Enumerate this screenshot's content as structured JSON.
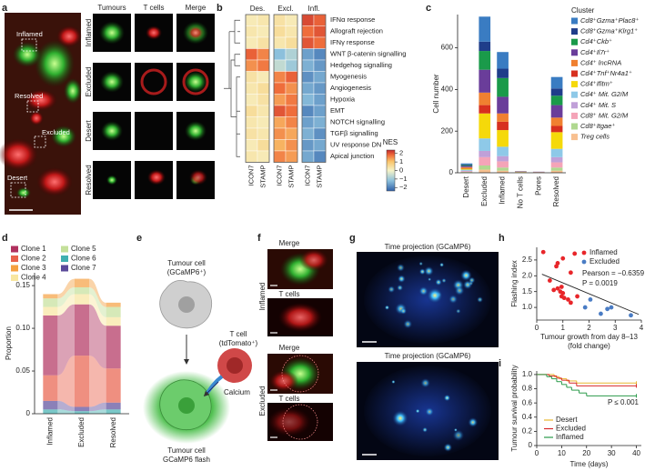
{
  "panel_labels": [
    "a",
    "b",
    "c",
    "d",
    "e",
    "f",
    "g",
    "h",
    "i"
  ],
  "panel_a": {
    "overview_labels": [
      "Inflamed",
      "Resolved",
      "Excluded",
      "Desert"
    ],
    "columns": [
      "Tumours",
      "T cells",
      "Merge"
    ],
    "rows": [
      "Inflamed",
      "Excluded",
      "Desert",
      "Resolved"
    ]
  },
  "panel_e": {
    "tumour_cell": [
      "Tumour cell",
      "(GCaMP6⁺)"
    ],
    "t_cell": [
      "T cell",
      "(tdTomato⁺)"
    ],
    "calcium": "Calcium",
    "flash": [
      "Tumour cell",
      "GCaMP6 flash"
    ]
  },
  "panel_f": {
    "groups": [
      {
        "name": "Inflamed",
        "top": "Merge",
        "bottom": "T cells"
      },
      {
        "name": "Excluded",
        "top": "Merge",
        "bottom": "T cells"
      }
    ]
  },
  "panel_g": {
    "titles": [
      "Time projection (GCaMP6)",
      "Time projection (GCaMP6)"
    ]
  },
  "chart_data": [
    {
      "type": "heatmap",
      "column_groups": [
        "Des.",
        "Excl.",
        "Infl."
      ],
      "columns": [
        "ICON7",
        "STAMP",
        "ICON7",
        "STAMP",
        "ICON7",
        "STAMP"
      ],
      "rows": [
        "IFNα response",
        "Allograft rejection",
        "IFNγ response",
        "WNT β-catenin signalling",
        "Hedgehog signalling",
        "Myogenesis",
        "Angiogenesis",
        "Hypoxia",
        "EMT",
        "NOTCH signalling",
        "TGFβ signalling",
        "UV response DN",
        "Apical junction"
      ],
      "values": [
        [
          0.2,
          0.3,
          0.4,
          0.2,
          2.1,
          1.9
        ],
        [
          0.3,
          0.2,
          0.5,
          0.3,
          1.8,
          2.0
        ],
        [
          0.2,
          0.4,
          0.3,
          0.5,
          2.0,
          1.8
        ],
        [
          1.9,
          1.6,
          -1.2,
          -0.8,
          -1.6,
          -1.9
        ],
        [
          1.5,
          1.7,
          -0.6,
          -1.0,
          -1.4,
          -1.7
        ],
        [
          0.4,
          0.2,
          1.6,
          1.9,
          -1.8,
          -1.5
        ],
        [
          0.3,
          0.5,
          1.8,
          1.5,
          -1.5,
          -1.7
        ],
        [
          0.2,
          0.4,
          1.4,
          1.7,
          -1.3,
          -1.6
        ],
        [
          0.5,
          0.3,
          2.0,
          1.8,
          -1.9,
          -1.6
        ],
        [
          0.3,
          0.2,
          1.3,
          1.6,
          -1.6,
          -1.4
        ],
        [
          0.4,
          0.3,
          1.5,
          1.3,
          -1.4,
          -1.8
        ],
        [
          0.2,
          0.5,
          1.2,
          1.5,
          -1.7,
          -1.5
        ],
        [
          0.3,
          0.2,
          1.6,
          1.4,
          -1.5,
          -1.9
        ]
      ],
      "colorbar_title": "NES",
      "clim": [
        -2.4,
        2.4
      ],
      "cticks": [
        2,
        1,
        0,
        {
          "value": -1,
          "label": "−1"
        },
        {
          "value": -2,
          "label": "−2"
        }
      ]
    },
    {
      "type": "bar",
      "stacked": true,
      "categories": [
        "Desert",
        "Excluded",
        "Inflamed",
        "No T cells",
        "Pores",
        "Resolved"
      ],
      "y_label": "Cell number",
      "ylim": [
        0,
        760
      ],
      "yticks": [
        0,
        200,
        400,
        600
      ],
      "legend_title": "Cluster",
      "series": [
        {
          "name": "Cd8⁺Gzma⁺Plac8⁺",
          "color": "#3a7cc2",
          "values": [
            5,
            120,
            80,
            1,
            0,
            55
          ]
        },
        {
          "name": "Cd8⁺Gzma⁺Klrg1⁺",
          "color": "#1f3d8a",
          "values": [
            3,
            45,
            45,
            0,
            0,
            35
          ]
        },
        {
          "name": "Cd4⁺Ckb⁺",
          "color": "#1a9a4a",
          "values": [
            4,
            90,
            90,
            0,
            0,
            45
          ]
        },
        {
          "name": "Cd4⁺Il7r⁺",
          "color": "#6a3d9a",
          "values": [
            6,
            110,
            80,
            1,
            1,
            60
          ]
        },
        {
          "name": "Cd4⁺ lncRNA",
          "color": "#f08030",
          "values": [
            4,
            60,
            40,
            1,
            1,
            40
          ]
        },
        {
          "name": "Cd4⁺Tnf⁺Nr4a1⁺",
          "color": "#d7301f",
          "values": [
            3,
            40,
            40,
            1,
            0,
            30
          ]
        },
        {
          "name": "Cd4⁺Ifitm⁺",
          "color": "#f5d90a",
          "values": [
            5,
            120,
            80,
            1,
            0,
            80
          ]
        },
        {
          "name": "Cd4⁺ Mit. G2/M",
          "color": "#8ec9e8",
          "values": [
            5,
            60,
            45,
            1,
            1,
            40
          ]
        },
        {
          "name": "Cd4⁺ Mit. S",
          "color": "#c0a0d8",
          "values": [
            3,
            30,
            25,
            0,
            1,
            25
          ]
        },
        {
          "name": "Cd8⁺ Mit. G2/M",
          "color": "#f4a4b8",
          "values": [
            3,
            40,
            30,
            1,
            1,
            25
          ]
        },
        {
          "name": "Cd8⁺Itgae⁺",
          "color": "#b0d890",
          "values": [
            2,
            20,
            15,
            1,
            0,
            15
          ]
        },
        {
          "name": "Treg cells",
          "color": "#f8c090",
          "values": [
            2,
            15,
            10,
            0,
            0,
            10
          ]
        }
      ]
    },
    {
      "type": "area",
      "stacked": true,
      "categories": [
        "Inflamed",
        "Excluded",
        "Resolved"
      ],
      "y_label": "Proportion",
      "ylim": [
        0,
        0.165
      ],
      "yticks": [
        0,
        0.05,
        {
          "value": 0.1,
          "label": "0.10"
        },
        0.15
      ],
      "series": [
        {
          "name": "Clone 1",
          "color": "#b0305e",
          "values": [
            0.07,
            0.06,
            0.05
          ]
        },
        {
          "name": "Clone 2",
          "color": "#e8604a",
          "values": [
            0.03,
            0.06,
            0.04
          ]
        },
        {
          "name": "Clone 3",
          "color": "#f5a040",
          "values": [
            0.005,
            0.01,
            0.005
          ]
        },
        {
          "name": "Clone 4",
          "color": "#f8e6a0",
          "values": [
            0.01,
            0.012,
            0.01
          ]
        },
        {
          "name": "Clone 5",
          "color": "#c4e09a",
          "values": [
            0.01,
            0.008,
            0.012
          ]
        },
        {
          "name": "Clone 6",
          "color": "#40b0b0",
          "values": [
            0.005,
            0.003,
            0.005
          ]
        },
        {
          "name": "Clone 7",
          "color": "#5a4a9a",
          "values": [
            0.01,
            0.005,
            0.008
          ]
        }
      ]
    },
    {
      "type": "scatter",
      "x_label": [
        "Tumour growth from day 8–13",
        "(fold change)"
      ],
      "y_label": "Flashing index",
      "xlim": [
        0,
        4
      ],
      "xticks": [
        0,
        1,
        2,
        3,
        4
      ],
      "ylim": [
        0.6,
        2.9
      ],
      "yticks": [
        {
          "value": 1,
          "label": "1.0"
        },
        1.5,
        {
          "value": 2,
          "label": "2.0"
        },
        2.5
      ],
      "series": [
        {
          "name": "Inflamed",
          "color": "#e8262a",
          "x": [
            0.25,
            0.5,
            0.65,
            0.75,
            0.8,
            0.8,
            0.9,
            0.95,
            0.95,
            1.0,
            1.0,
            1.05,
            1.2,
            1.3,
            1.3,
            1.45,
            1.55
          ],
          "values": [
            2.75,
            1.85,
            1.55,
            2.3,
            1.6,
            2.4,
            1.5,
            1.35,
            1.65,
            2.55,
            1.45,
            1.3,
            1.25,
            2.1,
            1.15,
            2.7,
            1.35
          ]
        },
        {
          "name": "Excluded",
          "color": "#4a7cc4",
          "x": [
            1.85,
            2.05,
            2.45,
            2.7,
            2.85,
            3.6
          ],
          "values": [
            1.0,
            1.25,
            0.8,
            0.95,
            1.0,
            0.75
          ]
        }
      ],
      "trend_line": {
        "x": [
          0.2,
          3.9
        ],
        "values": [
          2.05,
          0.78
        ]
      },
      "annotations": [
        "Pearson = −0.6359",
        "P = 0.0019"
      ]
    },
    {
      "type": "step",
      "x_label": "Time (days)",
      "y_label": "Tumour survival probability",
      "xlim": [
        0,
        42
      ],
      "xticks": [
        0,
        10,
        20,
        30,
        40
      ],
      "ylim": [
        0,
        1.05
      ],
      "yticks": [
        0,
        0.2,
        0.4,
        0.6,
        0.8,
        {
          "value": 1,
          "label": "1.0"
        }
      ],
      "series": [
        {
          "name": "Desert",
          "color": "#e8b830",
          "x": [
            0,
            7,
            9,
            12,
            16,
            40
          ],
          "values": [
            1,
            0.97,
            0.94,
            0.91,
            0.88,
            0.88
          ]
        },
        {
          "name": "Excluded",
          "color": "#d8282a",
          "x": [
            0,
            5,
            8,
            10,
            13,
            16,
            40
          ],
          "values": [
            1,
            0.98,
            0.95,
            0.92,
            0.88,
            0.84,
            0.84
          ]
        },
        {
          "name": "Inflamed",
          "color": "#2a9a4a",
          "x": [
            0,
            4,
            6,
            8,
            10,
            12,
            14,
            17,
            20,
            40
          ],
          "values": [
            1,
            0.97,
            0.94,
            0.9,
            0.86,
            0.82,
            0.78,
            0.74,
            0.7,
            0.7
          ]
        }
      ],
      "annotation": "P ≤ 0.001"
    }
  ]
}
